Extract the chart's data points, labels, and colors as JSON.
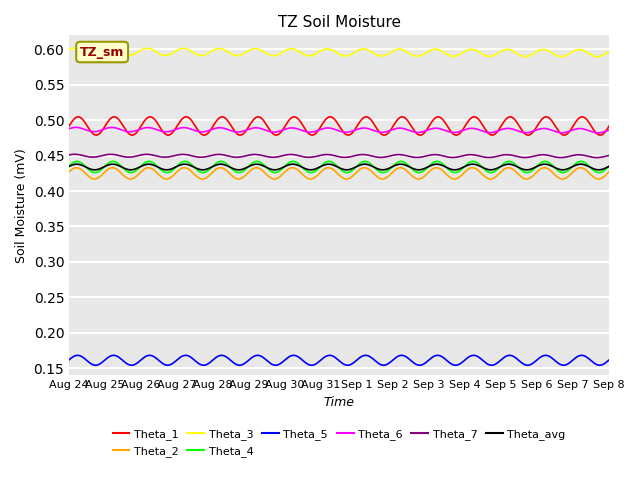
{
  "title": "TZ Soil Moisture",
  "xlabel": "Time",
  "ylabel": "Soil Moisture (mV)",
  "ylim": [
    0.14,
    0.62
  ],
  "yticks": [
    0.15,
    0.2,
    0.25,
    0.3,
    0.35,
    0.4,
    0.45,
    0.5,
    0.55,
    0.6
  ],
  "x_labels": [
    "Aug 24",
    "Aug 25",
    "Aug 26",
    "Aug 27",
    "Aug 28",
    "Aug 29",
    "Aug 30",
    "Aug 31",
    "Sep 1",
    "Sep 2",
    "Sep 3",
    "Sep 4",
    "Sep 5",
    "Sep 6",
    "Sep 7",
    "Sep 8"
  ],
  "n_points": 336,
  "series": [
    {
      "name": "Theta_1",
      "color": "red",
      "base": 0.492,
      "amp": 0.013,
      "phase": 0.0,
      "trend": 0.0
    },
    {
      "name": "Theta_2",
      "color": "orange",
      "base": 0.425,
      "amp": 0.008,
      "phase": 0.3,
      "trend": 0.0
    },
    {
      "name": "Theta_3",
      "color": "yellow",
      "base": 0.597,
      "amp": 0.005,
      "phase": 0.5,
      "trend": -0.00015
    },
    {
      "name": "Theta_4",
      "color": "lime",
      "base": 0.434,
      "amp": 0.008,
      "phase": 0.2,
      "trend": 0.0
    },
    {
      "name": "Theta_5",
      "color": "blue",
      "base": 0.161,
      "amp": 0.007,
      "phase": 0.1,
      "trend": 0.0
    },
    {
      "name": "Theta_6",
      "color": "magenta",
      "base": 0.487,
      "amp": 0.003,
      "phase": 0.4,
      "trend": -0.00012
    },
    {
      "name": "Theta_7",
      "color": "purple",
      "base": 0.45,
      "amp": 0.002,
      "phase": 0.6,
      "trend": -5e-05
    },
    {
      "name": "Theta_avg",
      "color": "black",
      "base": 0.434,
      "amp": 0.004,
      "phase": 0.25,
      "trend": 0.0
    }
  ],
  "legend_order": [
    "Theta_1",
    "Theta_2",
    "Theta_3",
    "Theta_4",
    "Theta_5",
    "Theta_6",
    "Theta_7",
    "Theta_avg"
  ],
  "label_box": {
    "text": "TZ_sm",
    "bgcolor": "#ffffcc",
    "edgecolor": "#999900",
    "textcolor": "#990000"
  },
  "bg_color": "#e8e8e8",
  "grid_color": "white",
  "linewidth": 1.2
}
